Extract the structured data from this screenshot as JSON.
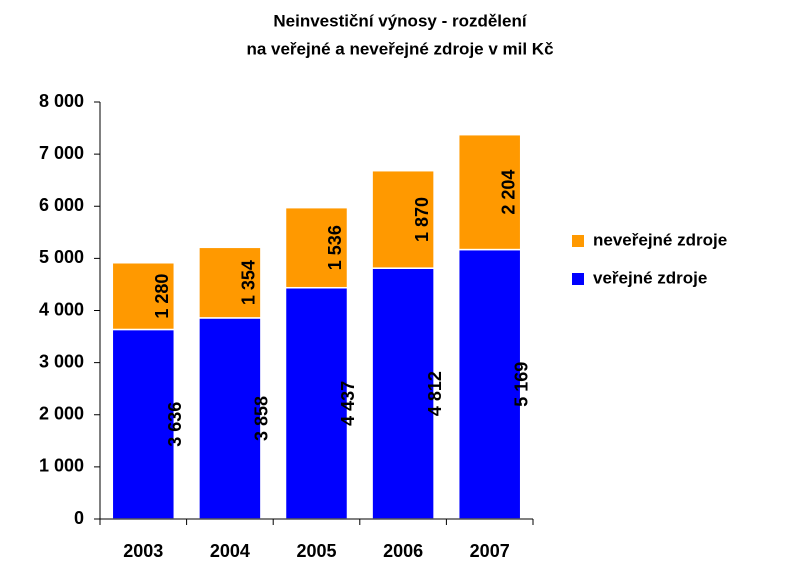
{
  "chart_data": {
    "type": "bar",
    "stacked": true,
    "title": [
      "Neinvestiční výnosy - rozdělení",
      "na veřejné a neveřejné zdroje v mil Kč"
    ],
    "categories": [
      "2003",
      "2004",
      "2005",
      "2006",
      "2007"
    ],
    "series": [
      {
        "name": "veřejné zdroje",
        "color": "#0000ff",
        "values": [
          3636,
          3858,
          4437,
          4812,
          5169
        ],
        "value_labels": [
          "3 636",
          "3 858",
          "4 437",
          "4 812",
          "5 169"
        ]
      },
      {
        "name": "neveřejné zdroje",
        "color": "#ff9900",
        "label_color": "#ff6600",
        "values": [
          1280,
          1354,
          1536,
          1870,
          2204
        ],
        "value_labels": [
          "1 280",
          "1 354",
          "1 536",
          "1 870",
          "2 204"
        ]
      }
    ],
    "ylim": [
      0,
      8000
    ],
    "yticks": [
      0,
      {
        "value": 1000,
        "label": "1 000"
      },
      {
        "value": 2000,
        "label": "2 000"
      },
      {
        "value": 3000,
        "label": "3 000"
      },
      {
        "value": 4000,
        "label": "4 000"
      },
      {
        "value": 5000,
        "label": "5 000"
      },
      {
        "value": 6000,
        "label": "6 000"
      },
      {
        "value": 7000,
        "label": "7 000"
      },
      {
        "value": 8000,
        "label": "8 000"
      }
    ],
    "legend": "right"
  }
}
